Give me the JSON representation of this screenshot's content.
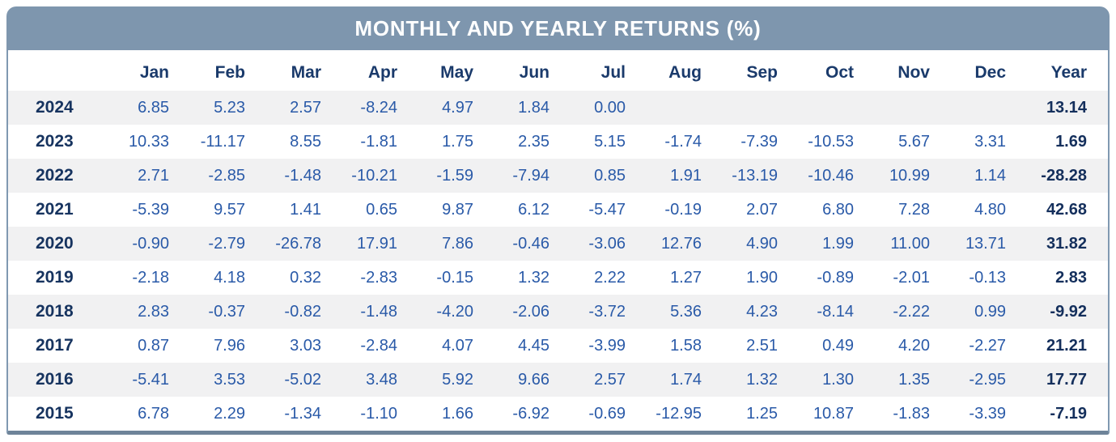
{
  "banner": {
    "title": "MONTHLY AND YEARLY RETURNS (%)"
  },
  "colors": {
    "banner_bg": "#7E96AE",
    "border_side": "#8099B1",
    "border_bottom": "#6E8499",
    "header_text": "#1A3A6B",
    "row_year_text": "#16335F",
    "value_text": "#2A5AA8",
    "year_total_text": "#142F5C",
    "stripe_bg": "#F1F1F2",
    "title_text": "#FFFFFF"
  },
  "chart_data": {
    "type": "table",
    "title": "MONTHLY AND YEARLY RETURNS (%)",
    "corner_label": "",
    "columns": [
      "Jan",
      "Feb",
      "Mar",
      "Apr",
      "May",
      "Jun",
      "Jul",
      "Aug",
      "Sep",
      "Oct",
      "Nov",
      "Dec",
      "Year"
    ],
    "rows": [
      {
        "year": "2024",
        "monthly": [
          6.85,
          5.23,
          2.57,
          -8.24,
          4.97,
          1.84,
          0.0,
          null,
          null,
          null,
          null,
          null
        ],
        "year_return": 13.14
      },
      {
        "year": "2023",
        "monthly": [
          10.33,
          -11.17,
          8.55,
          -1.81,
          1.75,
          2.35,
          5.15,
          -1.74,
          -7.39,
          -10.53,
          5.67,
          3.31
        ],
        "year_return": 1.69
      },
      {
        "year": "2022",
        "monthly": [
          2.71,
          -2.85,
          -1.48,
          -10.21,
          -1.59,
          -7.94,
          0.85,
          1.91,
          -13.19,
          -10.46,
          10.99,
          1.14
        ],
        "year_return": -28.28
      },
      {
        "year": "2021",
        "monthly": [
          -5.39,
          9.57,
          1.41,
          0.65,
          9.87,
          6.12,
          -5.47,
          -0.19,
          2.07,
          6.8,
          7.28,
          4.8
        ],
        "year_return": 42.68
      },
      {
        "year": "2020",
        "monthly": [
          -0.9,
          -2.79,
          -26.78,
          17.91,
          7.86,
          -0.46,
          -3.06,
          12.76,
          4.9,
          1.99,
          11.0,
          13.71
        ],
        "year_return": 31.82
      },
      {
        "year": "2019",
        "monthly": [
          -2.18,
          4.18,
          0.32,
          -2.83,
          -0.15,
          1.32,
          2.22,
          1.27,
          1.9,
          -0.89,
          -2.01,
          -0.13
        ],
        "year_return": 2.83
      },
      {
        "year": "2018",
        "monthly": [
          2.83,
          -0.37,
          -0.82,
          -1.48,
          -4.2,
          -2.06,
          -3.72,
          5.36,
          4.23,
          -8.14,
          -2.22,
          0.99
        ],
        "year_return": -9.92
      },
      {
        "year": "2017",
        "monthly": [
          0.87,
          7.96,
          3.03,
          -2.84,
          4.07,
          4.45,
          -3.99,
          1.58,
          2.51,
          0.49,
          4.2,
          -2.27
        ],
        "year_return": 21.21
      },
      {
        "year": "2016",
        "monthly": [
          -5.41,
          3.53,
          -5.02,
          3.48,
          5.92,
          9.66,
          2.57,
          1.74,
          1.32,
          1.3,
          1.35,
          -2.95
        ],
        "year_return": 17.77
      },
      {
        "year": "2015",
        "monthly": [
          6.78,
          2.29,
          -1.34,
          -1.1,
          1.66,
          -6.92,
          -0.69,
          -12.95,
          1.25,
          10.87,
          -1.83,
          -3.39
        ],
        "year_return": -7.19
      }
    ],
    "layout": {
      "decimals": 2,
      "stripe_rows": "odd (first, third, ... from top)",
      "value_alignment": "right"
    }
  }
}
